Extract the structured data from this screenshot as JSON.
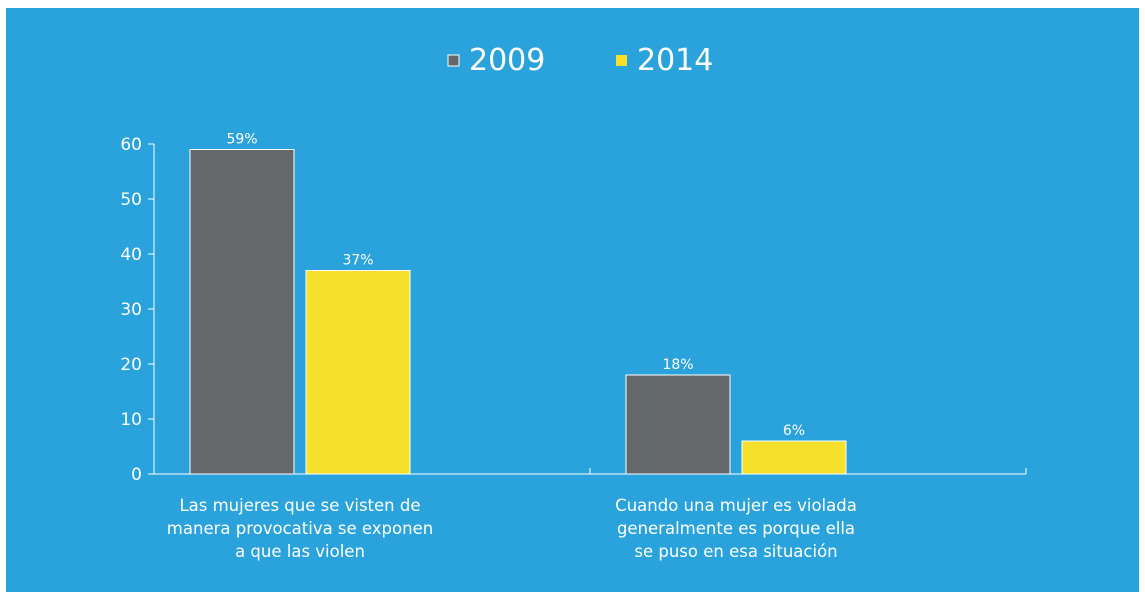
{
  "colors": {
    "background": "#2aa3dc",
    "series_2009": "#65686b",
    "series_2014": "#f6e02c",
    "axis": "#ffffff",
    "text": "#ffffff"
  },
  "chart_data": {
    "type": "bar",
    "title": "",
    "xlabel": "",
    "ylabel": "",
    "ylim": [
      0,
      60
    ],
    "yticks": [
      0,
      10,
      20,
      30,
      40,
      50,
      60
    ],
    "legend_position": "top-center",
    "grid": false,
    "categories": [
      [
        "Las mujeres que se visten de",
        "manera provocativa se exponen",
        "a que las violen"
      ],
      [
        "Cuando una mujer es violada",
        "generalmente es porque ella",
        "se puso en esa situación"
      ]
    ],
    "series": [
      {
        "name": "2009",
        "values": [
          59,
          18
        ],
        "labels": [
          "59%",
          "18%"
        ]
      },
      {
        "name": "2014",
        "values": [
          37,
          6
        ],
        "labels": [
          "37%",
          "6%"
        ]
      }
    ]
  }
}
